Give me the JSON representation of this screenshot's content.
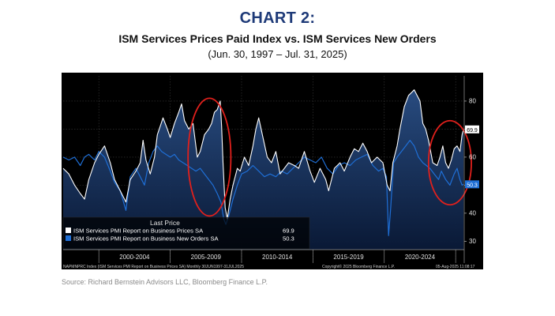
{
  "header": {
    "kicker": "CHART 2:",
    "title": "ISM Services Prices Paid Index vs. ISM Services New Orders",
    "date_range": "(Jun. 30, 1997 – Jul. 31, 2025)"
  },
  "source": "Source: Richard Bernstein Advisors LLC, Bloomberg Finance L.P.",
  "chart_data": {
    "type": "line",
    "x_range": [
      1997.5,
      2025.6
    ],
    "ylim": [
      27,
      89
    ],
    "y_ticks": [
      30,
      40,
      50,
      60,
      70,
      80
    ],
    "x_ticks": [
      {
        "label": "2000-2004",
        "at": 2002.5
      },
      {
        "label": "2005-2009",
        "at": 2007.5
      },
      {
        "label": "2010-2014",
        "at": 2012.5
      },
      {
        "label": "2015-2019",
        "at": 2017.5
      },
      {
        "label": "2020-2024",
        "at": 2022.5
      }
    ],
    "x_dividers": [
      2000,
      2005,
      2010,
      2015,
      2020,
      2025
    ],
    "grid": true,
    "legend": {
      "title": "Last Price",
      "position": "bottom-left",
      "entries": [
        {
          "label": "ISM Services PMI Report on Business Prices SA",
          "value": "69.9",
          "color": "#ffffff"
        },
        {
          "label": "ISM Services PMI Report on Business New Orders SA",
          "value": "50.3",
          "color": "#1f6fd6"
        }
      ]
    },
    "footer": {
      "left": "NAPMNPRC Index (ISM Services PMI Report on Business Prices SA)  Monthly 30JUN1997-31JUL2025",
      "copyright": "Copyright© 2025 Bloomberg Finance L.P.",
      "timestamp": "05-Aug-2025 11:08:17"
    },
    "highlight_circles": [
      {
        "x_center": 2007.75,
        "y_center": 60,
        "x_radius": 1.5,
        "y_radius": 21
      },
      {
        "x_center": 2024.6,
        "y_center": 58,
        "x_radius": 1.5,
        "y_radius": 15
      }
    ],
    "series": [
      {
        "name": "ISM Services PMI Report on Business Prices SA",
        "color": "#ffffff",
        "points": [
          [
            1997.5,
            56
          ],
          [
            1997.9,
            54
          ],
          [
            1998.3,
            50
          ],
          [
            1998.7,
            47
          ],
          [
            1999.0,
            45
          ],
          [
            1999.3,
            52
          ],
          [
            1999.7,
            58
          ],
          [
            2000.0,
            61
          ],
          [
            2000.4,
            64
          ],
          [
            2000.8,
            58
          ],
          [
            2001.1,
            52
          ],
          [
            2001.5,
            48
          ],
          [
            2001.9,
            44
          ],
          [
            2002.2,
            52
          ],
          [
            2002.6,
            55
          ],
          [
            2002.9,
            58
          ],
          [
            2003.1,
            66
          ],
          [
            2003.3,
            59
          ],
          [
            2003.6,
            54
          ],
          [
            2003.9,
            60
          ],
          [
            2004.1,
            68
          ],
          [
            2004.3,
            71
          ],
          [
            2004.5,
            74
          ],
          [
            2004.8,
            70
          ],
          [
            2005.0,
            67
          ],
          [
            2005.3,
            72
          ],
          [
            2005.6,
            76
          ],
          [
            2005.8,
            79
          ],
          [
            2006.0,
            73
          ],
          [
            2006.3,
            70
          ],
          [
            2006.6,
            72
          ],
          [
            2006.9,
            60
          ],
          [
            2007.1,
            62
          ],
          [
            2007.4,
            68
          ],
          [
            2007.7,
            70
          ],
          [
            2007.9,
            72
          ],
          [
            2008.1,
            76
          ],
          [
            2008.3,
            77
          ],
          [
            2008.5,
            80
          ],
          [
            2008.6,
            71
          ],
          [
            2008.7,
            58
          ],
          [
            2008.85,
            42
          ],
          [
            2009.0,
            38
          ],
          [
            2009.2,
            45
          ],
          [
            2009.4,
            50
          ],
          [
            2009.7,
            56
          ],
          [
            2009.9,
            55
          ],
          [
            2010.2,
            60
          ],
          [
            2010.5,
            57
          ],
          [
            2010.8,
            64
          ],
          [
            2011.0,
            70
          ],
          [
            2011.2,
            74
          ],
          [
            2011.5,
            67
          ],
          [
            2011.8,
            60
          ],
          [
            2012.1,
            58
          ],
          [
            2012.4,
            62
          ],
          [
            2012.7,
            54
          ],
          [
            2013.0,
            56
          ],
          [
            2013.3,
            58
          ],
          [
            2013.7,
            57
          ],
          [
            2014.0,
            56
          ],
          [
            2014.4,
            62
          ],
          [
            2014.8,
            55
          ],
          [
            2015.1,
            51
          ],
          [
            2015.5,
            56
          ],
          [
            2015.9,
            52
          ],
          [
            2016.1,
            48
          ],
          [
            2016.5,
            56
          ],
          [
            2016.9,
            58
          ],
          [
            2017.2,
            55
          ],
          [
            2017.6,
            60
          ],
          [
            2017.9,
            63
          ],
          [
            2018.2,
            62
          ],
          [
            2018.5,
            65
          ],
          [
            2018.8,
            62
          ],
          [
            2019.1,
            58
          ],
          [
            2019.5,
            60
          ],
          [
            2019.9,
            58
          ],
          [
            2020.2,
            50
          ],
          [
            2020.4,
            48
          ],
          [
            2020.6,
            58
          ],
          [
            2020.9,
            64
          ],
          [
            2021.1,
            70
          ],
          [
            2021.4,
            78
          ],
          [
            2021.7,
            82
          ],
          [
            2021.9,
            83
          ],
          [
            2022.1,
            84
          ],
          [
            2022.3,
            82
          ],
          [
            2022.5,
            80
          ],
          [
            2022.7,
            72
          ],
          [
            2022.9,
            70
          ],
          [
            2023.1,
            66
          ],
          [
            2023.4,
            58
          ],
          [
            2023.7,
            57
          ],
          [
            2023.9,
            60
          ],
          [
            2024.1,
            64
          ],
          [
            2024.3,
            58
          ],
          [
            2024.5,
            56
          ],
          [
            2024.7,
            59
          ],
          [
            2024.9,
            63
          ],
          [
            2025.1,
            64
          ],
          [
            2025.3,
            62
          ],
          [
            2025.45,
            68
          ],
          [
            2025.55,
            69.9
          ]
        ]
      },
      {
        "name": "ISM Services PMI Report on Business New Orders SA",
        "color": "#1f6fd6",
        "points": [
          [
            1997.5,
            60
          ],
          [
            1997.9,
            59
          ],
          [
            1998.3,
            60
          ],
          [
            1998.7,
            57
          ],
          [
            1999.0,
            60
          ],
          [
            1999.3,
            61
          ],
          [
            1999.7,
            59
          ],
          [
            2000.0,
            62
          ],
          [
            2000.4,
            60
          ],
          [
            2000.8,
            55
          ],
          [
            2001.1,
            51
          ],
          [
            2001.5,
            48
          ],
          [
            2001.9,
            41
          ],
          [
            2002.2,
            53
          ],
          [
            2002.6,
            56
          ],
          [
            2002.9,
            53
          ],
          [
            2003.2,
            50
          ],
          [
            2003.5,
            58
          ],
          [
            2003.8,
            62
          ],
          [
            2004.1,
            64
          ],
          [
            2004.4,
            62
          ],
          [
            2004.7,
            61
          ],
          [
            2005.0,
            60
          ],
          [
            2005.3,
            61
          ],
          [
            2005.6,
            59
          ],
          [
            2005.9,
            58
          ],
          [
            2006.2,
            57
          ],
          [
            2006.5,
            56
          ],
          [
            2006.8,
            55
          ],
          [
            2007.1,
            56
          ],
          [
            2007.4,
            54
          ],
          [
            2007.7,
            52
          ],
          [
            2008.0,
            50
          ],
          [
            2008.3,
            47
          ],
          [
            2008.55,
            44
          ],
          [
            2008.75,
            38
          ],
          [
            2008.9,
            36
          ],
          [
            2009.1,
            39
          ],
          [
            2009.4,
            45
          ],
          [
            2009.7,
            50
          ],
          [
            2010.0,
            54
          ],
          [
            2010.4,
            55
          ],
          [
            2010.8,
            57
          ],
          [
            2011.2,
            55
          ],
          [
            2011.6,
            53
          ],
          [
            2012.0,
            54
          ],
          [
            2012.4,
            53
          ],
          [
            2012.8,
            55
          ],
          [
            2013.2,
            54
          ],
          [
            2013.6,
            56
          ],
          [
            2014.0,
            58
          ],
          [
            2014.4,
            60
          ],
          [
            2014.8,
            59
          ],
          [
            2015.2,
            58
          ],
          [
            2015.6,
            60
          ],
          [
            2016.0,
            56
          ],
          [
            2016.4,
            54
          ],
          [
            2016.8,
            57
          ],
          [
            2017.2,
            58
          ],
          [
            2017.6,
            57
          ],
          [
            2018.0,
            59
          ],
          [
            2018.4,
            60
          ],
          [
            2018.8,
            61
          ],
          [
            2019.2,
            57
          ],
          [
            2019.6,
            55
          ],
          [
            2019.9,
            56
          ],
          [
            2020.15,
            53
          ],
          [
            2020.3,
            32
          ],
          [
            2020.45,
            42
          ],
          [
            2020.65,
            58
          ],
          [
            2020.9,
            60
          ],
          [
            2021.2,
            62
          ],
          [
            2021.5,
            64
          ],
          [
            2021.8,
            66
          ],
          [
            2022.1,
            64
          ],
          [
            2022.4,
            60
          ],
          [
            2022.7,
            58
          ],
          [
            2022.95,
            57
          ],
          [
            2023.2,
            56
          ],
          [
            2023.5,
            54
          ],
          [
            2023.8,
            52
          ],
          [
            2024.0,
            55
          ],
          [
            2024.3,
            52
          ],
          [
            2024.6,
            50
          ],
          [
            2024.9,
            54
          ],
          [
            2025.1,
            56
          ],
          [
            2025.3,
            52
          ],
          [
            2025.45,
            50
          ],
          [
            2025.55,
            50.3
          ]
        ]
      }
    ]
  }
}
